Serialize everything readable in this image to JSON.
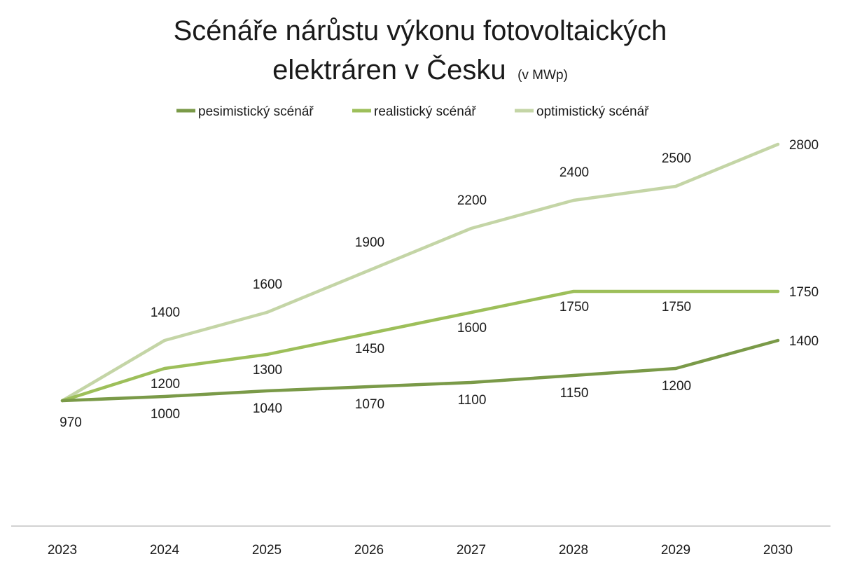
{
  "chart_data": {
    "type": "line",
    "title": "Scénáře nárůstu výkonu fotovoltaických elektráren v Česku",
    "title_line1": "Scénáře nárůstu výkonu fotovoltaických",
    "title_line2": "elektráren v Česku",
    "title_unit": "(v MWp)",
    "xlabel": "",
    "ylabel": "",
    "categories": [
      "2023",
      "2024",
      "2025",
      "2026",
      "2027",
      "2028",
      "2029",
      "2030"
    ],
    "series": [
      {
        "name": "pesimistický scénář",
        "color": "#7a9a48",
        "values": [
          970,
          1000,
          1040,
          1070,
          1100,
          1150,
          1200,
          1400
        ]
      },
      {
        "name": "realistický scénář",
        "color": "#9dbf5a",
        "values": [
          970,
          1200,
          1300,
          1450,
          1600,
          1750,
          1750,
          1750
        ]
      },
      {
        "name": "optimistický scénář",
        "color": "#c4d5a6",
        "values": [
          970,
          1400,
          1600,
          1900,
          2200,
          2400,
          2500,
          2800
        ]
      }
    ],
    "legend_position": "top",
    "grid": false,
    "axis_color": "#a6a6a6"
  }
}
